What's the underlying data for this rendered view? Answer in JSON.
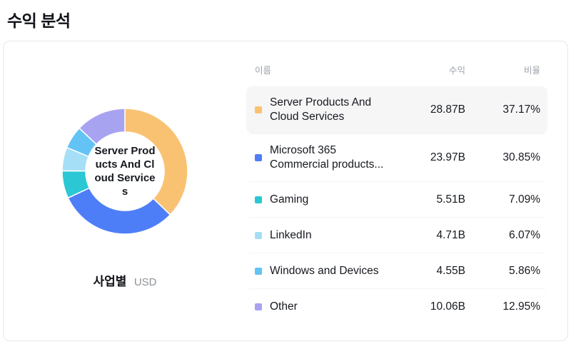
{
  "page_title": "수익 분석",
  "card": {
    "donut": {
      "center_label": "Server Products And Cloud Services",
      "caption_label": "사업별",
      "caption_unit": "USD"
    },
    "table": {
      "headers": {
        "name": "이름",
        "revenue": "수익",
        "ratio": "비율"
      }
    }
  },
  "chart_data": {
    "type": "pie",
    "title": "수익 분석",
    "subtitle": "사업별 (USD)",
    "inner_radius_ratio": 0.625,
    "start_angle_deg": -90,
    "direction": "clockwise",
    "center_label": "Server Products And Cloud Services",
    "legend_position": "right-table",
    "segments": [
      {
        "name": "Server Products And Cloud Services",
        "revenue": "28.87B",
        "value_pct": 37.17,
        "ratio": "37.17%",
        "color": "#F9C273",
        "highlighted": true
      },
      {
        "name": "Microsoft 365 Commercial products...",
        "revenue": "23.97B",
        "value_pct": 30.85,
        "ratio": "30.85%",
        "color": "#4E7EF7",
        "highlighted": false
      },
      {
        "name": "Gaming",
        "revenue": "5.51B",
        "value_pct": 7.09,
        "ratio": "7.09%",
        "color": "#2BC7D4",
        "highlighted": false
      },
      {
        "name": "LinkedIn",
        "revenue": "4.71B",
        "value_pct": 6.07,
        "ratio": "6.07%",
        "color": "#A5DFF7",
        "highlighted": false
      },
      {
        "name": "Windows and Devices",
        "revenue": "4.55B",
        "value_pct": 5.86,
        "ratio": "5.86%",
        "color": "#63C3F5",
        "highlighted": false
      },
      {
        "name": "Other",
        "revenue": "10.06B",
        "value_pct": 12.95,
        "ratio": "12.95%",
        "color": "#A8A3F1",
        "highlighted": false
      }
    ]
  }
}
